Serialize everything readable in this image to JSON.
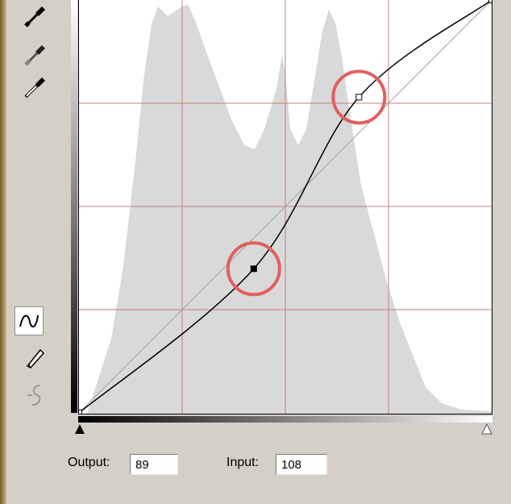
{
  "tools": {
    "top": [
      {
        "name": "black-point-eyedropper-icon"
      },
      {
        "name": "gray-point-eyedropper-icon"
      },
      {
        "name": "white-point-eyedropper-icon"
      }
    ],
    "bottom": [
      {
        "name": "curve-tool-icon",
        "selected": true
      },
      {
        "name": "pencil-tool-icon",
        "selected": false
      },
      {
        "name": "smooth-curve-icon",
        "selected": false
      }
    ]
  },
  "curve": {
    "points": [
      {
        "input": 0,
        "output": 0,
        "selected": false
      },
      {
        "input": 108,
        "output": 89,
        "selected": true
      },
      {
        "input": 173,
        "output": 195,
        "selected": false
      },
      {
        "input": 255,
        "output": 255,
        "selected": false
      }
    ],
    "highlight_color": "#e06060",
    "grid_color": "#c08080"
  },
  "fields": {
    "output_label": "Output:",
    "output_value": "89",
    "input_label": "Input:",
    "input_value": "108"
  }
}
